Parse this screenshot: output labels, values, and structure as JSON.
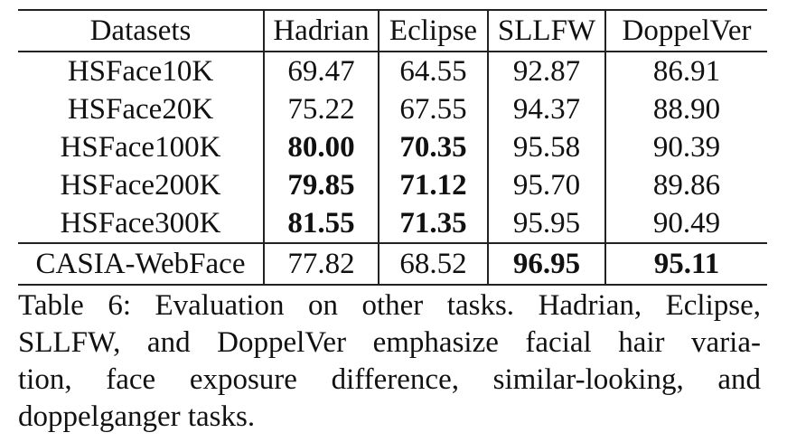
{
  "table": {
    "headers": [
      "Datasets",
      "Hadrian",
      "Eclipse",
      "SLLFW",
      "DoppelVer"
    ],
    "rows": [
      {
        "dataset": "HSFace10K",
        "hadrian": "69.47",
        "eclipse": "64.55",
        "sllfw": "92.87",
        "doppelver": "86.91"
      },
      {
        "dataset": "HSFace20K",
        "hadrian": "75.22",
        "eclipse": "67.55",
        "sllfw": "94.37",
        "doppelver": "88.90"
      },
      {
        "dataset": "HSFace100K",
        "hadrian": "80.00",
        "eclipse": "70.35",
        "sllfw": "95.58",
        "doppelver": "90.39"
      },
      {
        "dataset": "HSFace200K",
        "hadrian": "79.85",
        "eclipse": "71.12",
        "sllfw": "95.70",
        "doppelver": "89.86"
      },
      {
        "dataset": "HSFace300K",
        "hadrian": "81.55",
        "eclipse": "71.35",
        "sllfw": "95.95",
        "doppelver": "90.49"
      },
      {
        "dataset": "CASIA-WebFace",
        "hadrian": "77.82",
        "eclipse": "68.52",
        "sllfw": "96.95",
        "doppelver": "95.11"
      }
    ]
  },
  "caption": {
    "lines": [
      "Table 6: Evaluation on other tasks. Hadrian, Eclipse,",
      "SLLFW, and DoppelVer emphasize facial hair varia-",
      "tion, face exposure difference, similar-looking, and",
      "doppelganger tasks."
    ]
  }
}
